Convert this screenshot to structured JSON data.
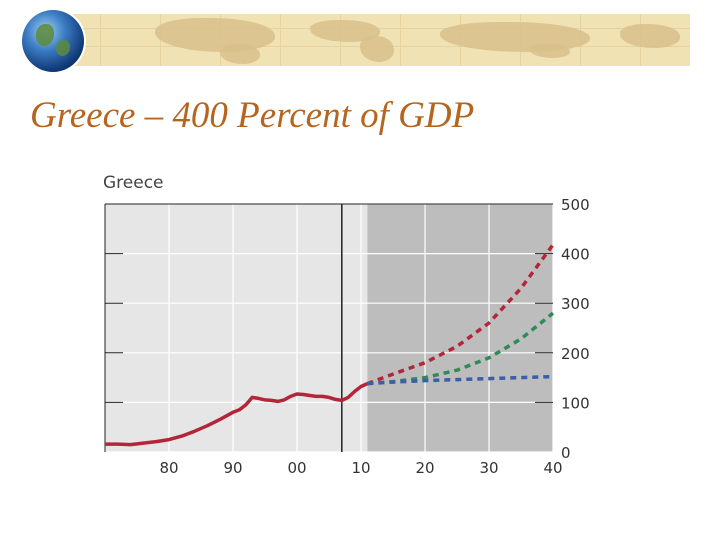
{
  "slide": {
    "title": "Greece – 400 Percent of GDP",
    "accent_color": "#b5651d",
    "banner_color": "#f1e2b4",
    "icons": [
      "globe-icon",
      "world-map-icon"
    ]
  },
  "chart_data": {
    "type": "line",
    "title": "Greece",
    "xlabel": "",
    "ylabel": "",
    "x_tick_labels": [
      "80",
      "90",
      "00",
      "10",
      "20",
      "30",
      "40"
    ],
    "x_ticks": [
      1980,
      1990,
      2000,
      2010,
      2020,
      2030,
      2040
    ],
    "y_tick_labels": [
      "0",
      "100",
      "200",
      "300",
      "400",
      "500"
    ],
    "y_ticks": [
      0,
      100,
      200,
      300,
      400,
      500
    ],
    "xlim": [
      1970,
      2040
    ],
    "ylim": [
      0,
      500
    ],
    "vertical_marker_x": 2007,
    "projection_shade_start": 2011,
    "y_axis_side": "right",
    "grid": true,
    "series": [
      {
        "color": "#b3263a",
        "style": "solid",
        "points": [
          [
            1970,
            16
          ],
          [
            1972,
            16
          ],
          [
            1974,
            15
          ],
          [
            1976,
            18
          ],
          [
            1978,
            21
          ],
          [
            1980,
            25
          ],
          [
            1982,
            32
          ],
          [
            1984,
            42
          ],
          [
            1986,
            53
          ],
          [
            1988,
            66
          ],
          [
            1990,
            80
          ],
          [
            1991,
            85
          ],
          [
            1992,
            95
          ],
          [
            1993,
            110
          ],
          [
            1994,
            108
          ],
          [
            1995,
            105
          ],
          [
            1996,
            104
          ],
          [
            1997,
            102
          ],
          [
            1998,
            105
          ],
          [
            1999,
            112
          ],
          [
            2000,
            117
          ],
          [
            2001,
            116
          ],
          [
            2002,
            114
          ],
          [
            2003,
            112
          ],
          [
            2004,
            112
          ],
          [
            2005,
            110
          ],
          [
            2006,
            106
          ],
          [
            2007,
            104
          ],
          [
            2008,
            110
          ],
          [
            2009,
            122
          ],
          [
            2010,
            132
          ],
          [
            2011,
            138
          ]
        ]
      },
      {
        "color": "#b3263a",
        "style": "dashed",
        "points": [
          [
            2011,
            138
          ],
          [
            2015,
            157
          ],
          [
            2020,
            180
          ],
          [
            2025,
            213
          ],
          [
            2030,
            260
          ],
          [
            2035,
            330
          ],
          [
            2040,
            418
          ]
        ]
      },
      {
        "color": "#2e8b57",
        "style": "dashed",
        "points": [
          [
            2011,
            138
          ],
          [
            2015,
            142
          ],
          [
            2020,
            150
          ],
          [
            2025,
            165
          ],
          [
            2030,
            190
          ],
          [
            2035,
            228
          ],
          [
            2040,
            280
          ]
        ]
      },
      {
        "color": "#3a5fa8",
        "style": "dashed",
        "points": [
          [
            2011,
            138
          ],
          [
            2015,
            141
          ],
          [
            2020,
            144
          ],
          [
            2025,
            146
          ],
          [
            2030,
            148
          ],
          [
            2035,
            150
          ],
          [
            2040,
            152
          ]
        ]
      }
    ]
  }
}
